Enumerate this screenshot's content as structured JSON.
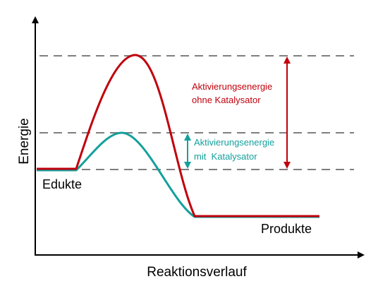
{
  "axes": {
    "y_label": "Energie",
    "x_label": "Reaktionsverlauf"
  },
  "labels": {
    "reactants": "Edukte",
    "products": "Produkte",
    "uncatalyzed_line1": "Aktivierungsenergie",
    "uncatalyzed_line2": "ohne Katalysator",
    "catalyzed_line1": "Aktivierungsenergie",
    "catalyzed_line2": "mit  Katalysator"
  },
  "colors": {
    "uncatalyzed": "#c0000b",
    "catalyzed": "#14a09c",
    "axis": "#000000",
    "dashed": "#7f7f7f"
  }
}
